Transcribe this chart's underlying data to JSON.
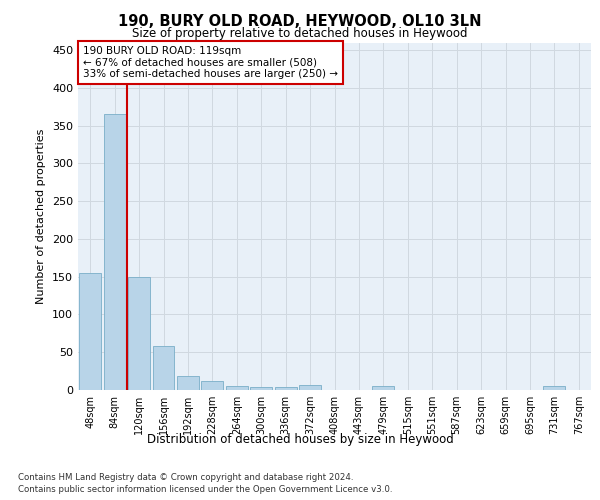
{
  "title": "190, BURY OLD ROAD, HEYWOOD, OL10 3LN",
  "subtitle": "Size of property relative to detached houses in Heywood",
  "xlabel": "Distribution of detached houses by size in Heywood",
  "ylabel": "Number of detached properties",
  "categories": [
    "48sqm",
    "84sqm",
    "120sqm",
    "156sqm",
    "192sqm",
    "228sqm",
    "264sqm",
    "300sqm",
    "336sqm",
    "372sqm",
    "408sqm",
    "443sqm",
    "479sqm",
    "515sqm",
    "551sqm",
    "587sqm",
    "623sqm",
    "659sqm",
    "695sqm",
    "731sqm",
    "767sqm"
  ],
  "values": [
    155,
    365,
    150,
    58,
    19,
    12,
    5,
    4,
    4,
    6,
    0,
    0,
    5,
    0,
    0,
    0,
    0,
    0,
    0,
    5,
    0
  ],
  "bar_color": "#b8d4e8",
  "bar_edgecolor": "#7aaec8",
  "grid_color": "#d0d8e0",
  "background_color": "#e8f0f8",
  "reference_line_x": 1.5,
  "annotation_box": {
    "text_line1": "190 BURY OLD ROAD: 119sqm",
    "text_line2": "← 67% of detached houses are smaller (508)",
    "text_line3": "33% of semi-detached houses are larger (250) →",
    "box_color": "#cc0000",
    "text_color": "#000000"
  },
  "footer_line1": "Contains HM Land Registry data © Crown copyright and database right 2024.",
  "footer_line2": "Contains public sector information licensed under the Open Government Licence v3.0.",
  "ylim": [
    0,
    460
  ],
  "yticks": [
    0,
    50,
    100,
    150,
    200,
    250,
    300,
    350,
    400,
    450
  ],
  "fig_width": 6.0,
  "fig_height": 5.0,
  "dpi": 100
}
